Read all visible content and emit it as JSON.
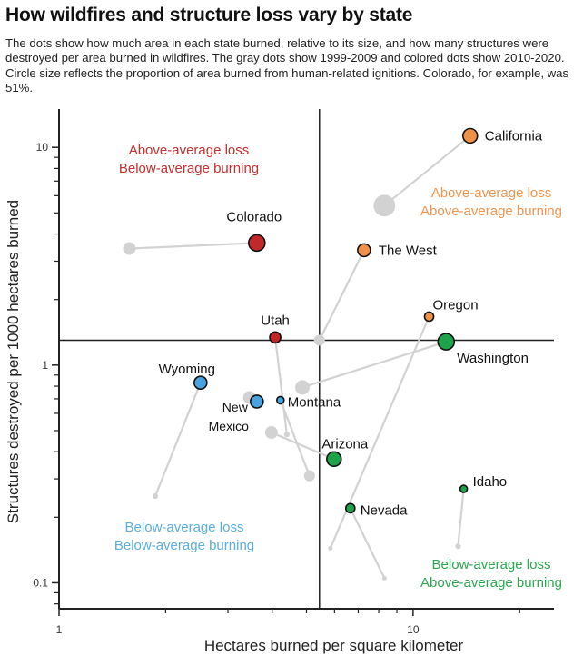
{
  "title": "How wildfires and structure loss vary by state",
  "subtitle": "The dots show how much area in each state burned, relative to its size, and how many structures were destroyed per area burned in wildfires. The gray dots show 1999-2009 and colored dots show 2010-2020. Circle size reflects the proportion of area burned from human-related ignitions. Colorado, for example, was 51%.",
  "chart_data": {
    "type": "scatter",
    "xlabel": "Hectares burned per square kilometer",
    "ylabel": "Structures destroyed per 1000 hectares burned",
    "xscale": "log",
    "yscale": "log",
    "xlim": [
      1,
      25
    ],
    "ylim": [
      0.076,
      15
    ],
    "xticks": [
      {
        "v": 1,
        "label": "1"
      },
      {
        "v": 10,
        "label": "10"
      }
    ],
    "xminor": [
      2,
      3,
      4,
      5,
      6,
      7,
      8,
      9,
      20
    ],
    "yticks": [
      {
        "v": 0.1,
        "label": "0.1"
      },
      {
        "v": 1,
        "label": "1"
      },
      {
        "v": 10,
        "label": "10"
      }
    ],
    "yminor": [
      0.08,
      0.09,
      0.2,
      0.3,
      0.4,
      0.5,
      0.6,
      0.7,
      0.8,
      0.9,
      2,
      3,
      4,
      5,
      6,
      7,
      8,
      9
    ],
    "reference_lines": {
      "x": 5.44,
      "y": 1.3
    },
    "grid": false,
    "colors": {
      "above_loss_below_burning": "#c0282a",
      "above_loss_above_burning": "#f0914a",
      "below_loss_below_burning": "#4aa3de",
      "below_loss_above_burning": "#1fa34a",
      "period_1999_2009": "#d2d2d2"
    },
    "quadrant_labels": [
      {
        "lines": [
          "Above-average loss",
          "Below-average burning"
        ],
        "color": "#c43030",
        "quadrant": "top-left"
      },
      {
        "lines": [
          "Above-average loss",
          "Above-average burning"
        ],
        "color": "#f0954e",
        "quadrant": "top-right"
      },
      {
        "lines": [
          "Below-average loss",
          "Below-average burning"
        ],
        "color": "#5aaee0",
        "quadrant": "bottom-left"
      },
      {
        "lines": [
          "Below-average loss",
          "Above-average burning"
        ],
        "color": "#2aa84f",
        "quadrant": "bottom-right"
      }
    ],
    "states": [
      {
        "name": "California",
        "color": "#f0914a",
        "p1999_2009": {
          "x": 8.3,
          "y": 5.4,
          "human_pct": 90
        },
        "p2010_2020": {
          "x": 14.5,
          "y": 11.3,
          "human_pct": 40
        }
      },
      {
        "name": "Colorado",
        "color": "#c0282a",
        "p1999_2009": {
          "x": 1.58,
          "y": 3.43,
          "human_pct": 31
        },
        "p2010_2020": {
          "x": 3.62,
          "y": 3.64,
          "human_pct": 51
        }
      },
      {
        "name": "The West",
        "color": "#f0914a",
        "p1999_2009": {
          "x": 5.44,
          "y": 1.3,
          "human_pct": 23
        },
        "p2010_2020": {
          "x": 7.27,
          "y": 3.37,
          "human_pct": 31
        }
      },
      {
        "name": "Oregon",
        "color": "#f0914a",
        "p1999_2009": {
          "x": 5.84,
          "y": 0.144,
          "human_pct": 3
        },
        "p2010_2020": {
          "x": 11.1,
          "y": 1.67,
          "human_pct": 16
        }
      },
      {
        "name": "Washington",
        "color": "#1fa34a",
        "p1999_2009": {
          "x": 4.87,
          "y": 0.79,
          "human_pct": 40
        },
        "p2010_2020": {
          "x": 12.4,
          "y": 1.28,
          "human_pct": 51
        }
      },
      {
        "name": "Utah",
        "color": "#c0282a",
        "p1999_2009": {
          "x": 4.4,
          "y": 0.48,
          "human_pct": 6
        },
        "p2010_2020": {
          "x": 4.08,
          "y": 1.34,
          "human_pct": 23
        }
      },
      {
        "name": "Wyoming",
        "color": "#4aa3de",
        "p1999_2009": {
          "x": 1.87,
          "y": 0.25,
          "human_pct": 6
        },
        "p2010_2020": {
          "x": 2.51,
          "y": 0.83,
          "human_pct": 31
        }
      },
      {
        "name": "New Mexico",
        "color": "#4aa3de",
        "p1999_2009": {
          "x": 3.45,
          "y": 0.71,
          "human_pct": 31
        },
        "p2010_2020": {
          "x": 3.62,
          "y": 0.68,
          "human_pct": 31
        }
      },
      {
        "name": "Montana",
        "color": "#4aa3de",
        "p1999_2009": {
          "x": 5.1,
          "y": 0.31,
          "human_pct": 23
        },
        "p2010_2020": {
          "x": 4.22,
          "y": 0.69,
          "human_pct": 10
        }
      },
      {
        "name": "Arizona",
        "color": "#1fa34a",
        "p1999_2009": {
          "x": 3.98,
          "y": 0.49,
          "human_pct": 31
        },
        "p2010_2020": {
          "x": 5.98,
          "y": 0.37,
          "human_pct": 40
        }
      },
      {
        "name": "Nevada",
        "color": "#1fa34a",
        "p1999_2009": {
          "x": 8.3,
          "y": 0.105,
          "human_pct": 3
        },
        "p2010_2020": {
          "x": 6.65,
          "y": 0.22,
          "human_pct": 16
        }
      },
      {
        "name": "Idaho",
        "color": "#1fa34a",
        "p1999_2009": {
          "x": 13.4,
          "y": 0.147,
          "human_pct": 6
        },
        "p2010_2020": {
          "x": 13.9,
          "y": 0.27,
          "human_pct": 10
        }
      }
    ]
  }
}
